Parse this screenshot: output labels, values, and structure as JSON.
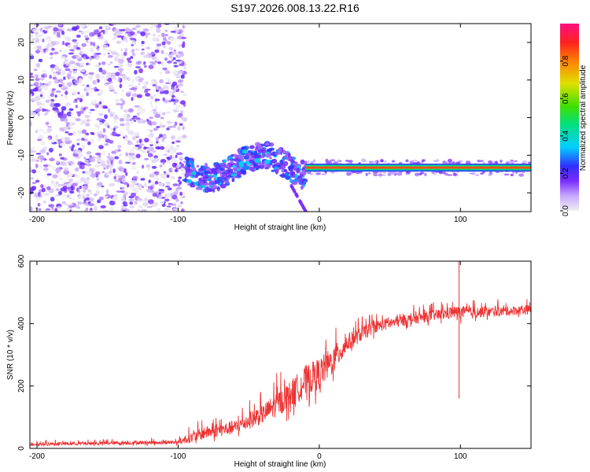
{
  "title": "S197.2026.008.13.22.R16",
  "chart_data": [
    {
      "type": "heatmap",
      "name": "spectrogram",
      "xlabel": "Height of straight line (km)",
      "ylabel": "Frequency (Hz)",
      "xlim": [
        -205,
        150
      ],
      "ylim": [
        -25,
        25
      ],
      "xticks": [
        -200,
        -100,
        0,
        100
      ],
      "yticks": [
        -20,
        -10,
        0,
        10,
        20
      ],
      "xtick_labels": [
        "-200",
        "-100",
        "0",
        "100"
      ],
      "ytick_labels": [
        "-20",
        "-10",
        "0",
        "10",
        "20"
      ],
      "features": {
        "noise_region_km": [
          -205,
          -95
        ],
        "scatter_band_km": [
          -95,
          -10
        ],
        "scatter_band_hz": [
          -18,
          -8
        ],
        "carrier_start_km": -10,
        "carrier_end_km": 150,
        "carrier_freq_hz": -13.3,
        "carrier_amplitude": 0.85,
        "spur_km": [
          -20,
          -5
        ],
        "spur_hz": [
          -28,
          -18
        ]
      },
      "colorbar": {
        "label": "Normalized spectral amplitude",
        "range": [
          0,
          1
        ],
        "ticks": [
          0,
          0.2,
          0.4,
          0.6,
          0.8
        ],
        "tick_labels": [
          "0.0",
          "0.2",
          "0.4",
          "0.6",
          "0.8"
        ]
      }
    },
    {
      "type": "line",
      "name": "snr",
      "xlabel": "Height of straight line (km)",
      "ylabel": "SNR (10 * v/v)",
      "xlim": [
        -205,
        150
      ],
      "ylim": [
        0,
        600
      ],
      "xticks": [
        -200,
        -100,
        0,
        100
      ],
      "yticks": [
        0,
        200,
        400,
        600
      ],
      "xtick_labels": [
        "-200",
        "-100",
        "0",
        "100"
      ],
      "ytick_labels": [
        "0",
        "200",
        "400",
        "600"
      ],
      "color": "#ee3333",
      "envelope": {
        "x": [
          -205,
          -100,
          -90,
          -80,
          -60,
          -40,
          -30,
          -20,
          -10,
          0,
          10,
          20,
          30,
          40,
          60,
          80,
          95,
          100,
          110,
          130,
          150
        ],
        "y": [
          12,
          18,
          30,
          45,
          60,
          100,
          130,
          160,
          200,
          225,
          270,
          330,
          360,
          385,
          405,
          420,
          430,
          430,
          430,
          435,
          440
        ],
        "noise": [
          10,
          12,
          35,
          40,
          45,
          60,
          80,
          90,
          100,
          100,
          90,
          60,
          45,
          40,
          35,
          35,
          40,
          40,
          35,
          30,
          30
        ]
      },
      "spikes": [
        {
          "x": 99,
          "y": 600
        },
        {
          "x": 99,
          "y": 160
        }
      ]
    }
  ]
}
